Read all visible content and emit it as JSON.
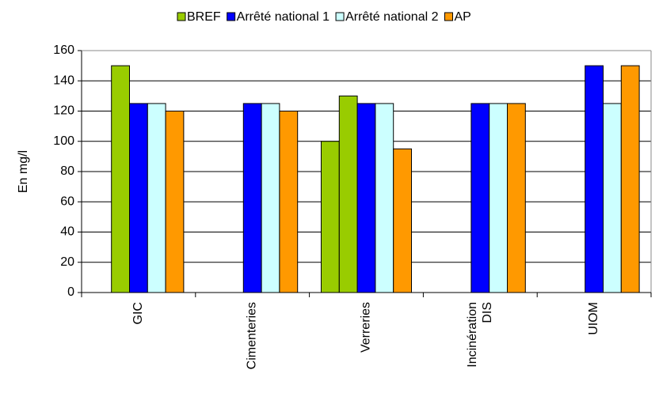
{
  "chart_data": {
    "type": "bar",
    "categories": [
      "GIC",
      "Cimenteries",
      "Verreries",
      "Incinération\nDIS",
      "UIOM"
    ],
    "series": [
      {
        "color": "#99cc00",
        "values": [
          null,
          null,
          100,
          null,
          null
        ]
      },
      {
        "name": "BREF",
        "color": "#99cc00",
        "values": [
          150,
          null,
          130,
          null,
          null
        ]
      },
      {
        "name": "Arrêté national 1",
        "color": "#0000ff",
        "values": [
          125,
          125,
          125,
          125,
          150
        ]
      },
      {
        "name": "Arrêté national 2",
        "color": "#ccffff",
        "values": [
          125,
          125,
          125,
          125,
          125
        ]
      },
      {
        "name": "AP",
        "color": "#ff9900",
        "values": [
          120,
          120,
          95,
          125,
          150
        ]
      }
    ],
    "ylabel": "En mg/l",
    "ylim": [
      0,
      160
    ],
    "yticks": [
      0,
      20,
      40,
      60,
      80,
      100,
      120,
      140,
      160
    ],
    "grid": true,
    "legend": "top"
  }
}
